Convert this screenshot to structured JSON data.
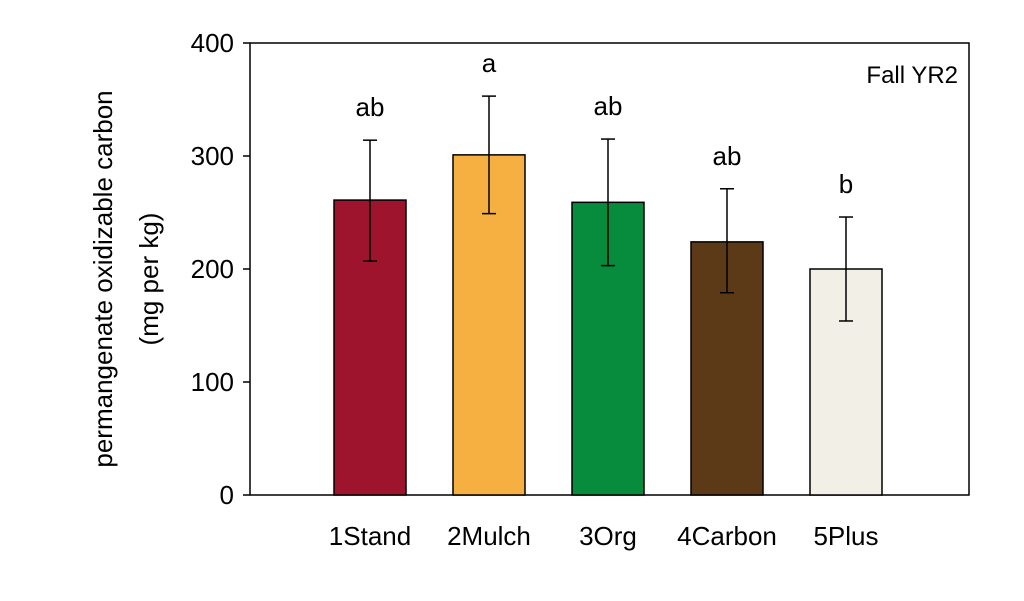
{
  "chart_data": {
    "type": "bar",
    "panel_label": "Fall YR2",
    "ylabel_line1": "permangenate oxidizable carbon",
    "ylabel_line2": "(mg per kg)",
    "xlabel": "",
    "ylim": [
      0,
      400
    ],
    "yticks": [
      0,
      100,
      200,
      300,
      400
    ],
    "ytick_labels": [
      "0",
      "100",
      "200",
      "300",
      "400"
    ],
    "grid": false,
    "categories": [
      "1Stand",
      "2Mulch",
      "3Org",
      "4Carbon",
      "5Plus"
    ],
    "values": [
      261,
      301,
      259,
      224,
      200
    ],
    "error_low": [
      207,
      249,
      203,
      179,
      154
    ],
    "error_high": [
      314,
      353,
      315,
      271,
      246
    ],
    "significance": [
      "ab",
      "a",
      "ab",
      "ab",
      "b"
    ],
    "colors": [
      "#9e142c",
      "#f5b041",
      "#078b3c",
      "#5d3a17",
      "#f1efe6"
    ]
  }
}
